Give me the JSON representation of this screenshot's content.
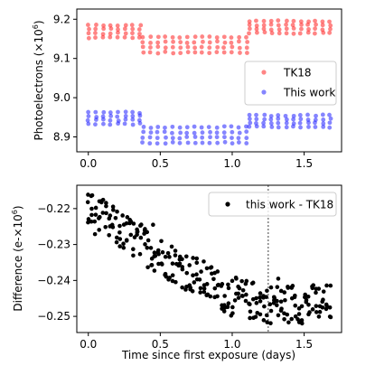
{
  "chart_data": [
    {
      "type": "scatter",
      "xlabel": "",
      "ylabel": "Photoelectrons (×10",
      "ylabel_sup": "6",
      "ylabel_end": ")",
      "xlim": [
        -0.08,
        1.76
      ],
      "ylim": [
        8.862,
        9.226
      ],
      "xticks": [
        0.0,
        0.5,
        1.0,
        1.5
      ],
      "xtick_labels": [
        "0.0",
        "0.5",
        "1.0",
        "1.5"
      ],
      "yticks": [
        8.9,
        9.0,
        9.1,
        9.2
      ],
      "ytick_labels": [
        "8.9",
        "9.0",
        "9.1",
        "9.2"
      ],
      "grid": false,
      "legend_position": "center-right",
      "series": [
        {
          "name": "TK18",
          "color": "#ff2020",
          "segments": [
            {
              "x0": 0.0,
              "x1": 0.36,
              "top": 9.185,
              "bottom": 9.153
            },
            {
              "x0": 0.38,
              "x1": 1.1,
              "top": 9.155,
              "bottom": 9.115
            },
            {
              "x0": 1.12,
              "x1": 1.68,
              "top": 9.195,
              "bottom": 9.165
            }
          ]
        },
        {
          "name": "This work",
          "color": "#2020ff",
          "segments": [
            {
              "x0": 0.0,
              "x1": 0.36,
              "top": 8.962,
              "bottom": 8.933
            },
            {
              "x0": 0.38,
              "x1": 1.1,
              "top": 8.925,
              "bottom": 8.885
            },
            {
              "x0": 1.12,
              "x1": 1.68,
              "top": 8.955,
              "bottom": 8.925
            }
          ]
        }
      ]
    },
    {
      "type": "scatter",
      "xlabel": "Time since first exposure (days)",
      "ylabel": "Difference (e-×10",
      "ylabel_sup": "6",
      "ylabel_end": ")",
      "xlim": [
        -0.08,
        1.76
      ],
      "ylim": [
        -0.2545,
        -0.2135
      ],
      "xticks": [
        0.0,
        0.5,
        1.0,
        1.5
      ],
      "xtick_labels": [
        "0.0",
        "0.5",
        "1.0",
        "1.5"
      ],
      "yticks": [
        -0.25,
        -0.24,
        -0.23,
        -0.22
      ],
      "ytick_labels": [
        "−0.25",
        "−0.24",
        "−0.23",
        "−0.22"
      ],
      "grid": false,
      "legend_position": "top-right",
      "vline": {
        "x": 1.25,
        "color": "#808080",
        "style": "dotted"
      },
      "series": [
        {
          "name": "this work - TK18",
          "color": "#000000",
          "trend": [
            {
              "x": 0.0,
              "y": -0.2205
            },
            {
              "x": 0.5,
              "y": -0.233
            },
            {
              "x": 1.0,
              "y": -0.2445
            },
            {
              "x": 1.25,
              "y": -0.2465
            },
            {
              "x": 1.68,
              "y": -0.2465
            }
          ],
          "spread": 0.0055,
          "highlights": [
            {
              "x": 0.02,
              "y": -0.2165
            },
            {
              "x": 0.45,
              "y": -0.2245
            },
            {
              "x": 1.32,
              "y": -0.2395
            },
            {
              "x": 1.42,
              "y": -0.2415
            }
          ]
        }
      ]
    }
  ]
}
